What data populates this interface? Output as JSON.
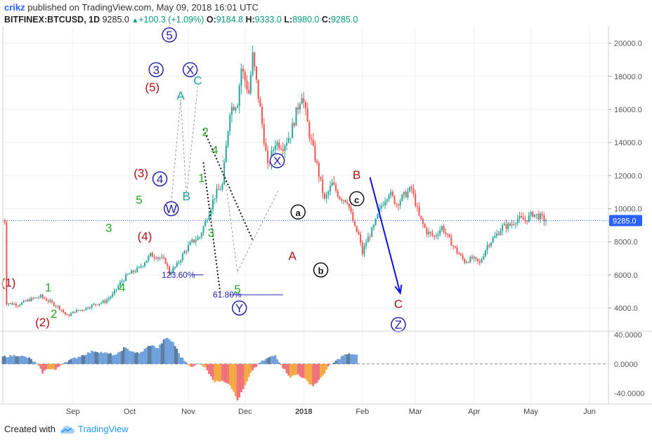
{
  "header": {
    "user": "crikz",
    "published": "published on TradingView.com, May 09, 2018 16:01 UTC",
    "symbol": "BITFINEX:BTCUSD, 1D",
    "price": "9285.0",
    "change": "+100.3 (+1.09%)",
    "o_label": "O:",
    "o": "9184.8",
    "h_label": "H:",
    "h": "9333.0",
    "l_label": "L:",
    "l": "8980.0",
    "c_label": "C:",
    "c": "9285.0"
  },
  "footer": {
    "created": "Created with",
    "brand": "TradingView"
  },
  "colors": {
    "up": "#26a69a",
    "down": "#ef5350",
    "blue": "#2222aa",
    "green": "#22aa22",
    "darkred": "#aa1111"
  },
  "chart_data": {
    "type": "candlestick",
    "symbol": "BITFINEX:BTCUSD",
    "timeframe": "1D",
    "last_price": 9285.0,
    "price_label": "9285.0",
    "ylim": [
      2600,
      21000
    ],
    "y_ticks": [
      4000,
      6000,
      8000,
      10000,
      12000,
      14000,
      16000,
      18000,
      20000
    ],
    "y_tick_labels": [
      "4000.0",
      "6000.0",
      "8000.0",
      "10000.0",
      "12000.0",
      "14000.0",
      "16000.0",
      "18000.0",
      "20000.0"
    ],
    "x_ticks": [
      {
        "d": 37,
        "label": "Sep"
      },
      {
        "d": 67,
        "label": "Oct"
      },
      {
        "d": 98,
        "label": "Nov"
      },
      {
        "d": 128,
        "label": "Dec"
      },
      {
        "d": 159,
        "label": "2018"
      },
      {
        "d": 190,
        "label": "Feb"
      },
      {
        "d": 218,
        "label": "Mar"
      },
      {
        "d": 249,
        "label": "Apr"
      },
      {
        "d": 279,
        "label": "May"
      },
      {
        "d": 310,
        "label": "Jun"
      }
    ],
    "price_path": [
      {
        "d": 2,
        "p": 4300
      },
      {
        "d": 8,
        "p": 4200
      },
      {
        "d": 14,
        "p": 4500
      },
      {
        "d": 20,
        "p": 4700
      },
      {
        "d": 26,
        "p": 4300
      },
      {
        "d": 30,
        "p": 4000
      },
      {
        "d": 34,
        "p": 3500
      },
      {
        "d": 38,
        "p": 3800
      },
      {
        "d": 42,
        "p": 3900
      },
      {
        "d": 48,
        "p": 4200
      },
      {
        "d": 54,
        "p": 4400
      },
      {
        "d": 58,
        "p": 4800
      },
      {
        "d": 62,
        "p": 5500
      },
      {
        "d": 66,
        "p": 6000
      },
      {
        "d": 72,
        "p": 6400
      },
      {
        "d": 78,
        "p": 7200
      },
      {
        "d": 82,
        "p": 7100
      },
      {
        "d": 86,
        "p": 6800
      },
      {
        "d": 88,
        "p": 6100
      },
      {
        "d": 92,
        "p": 6600
      },
      {
        "d": 96,
        "p": 7400
      },
      {
        "d": 100,
        "p": 8000
      },
      {
        "d": 104,
        "p": 8300
      },
      {
        "d": 108,
        "p": 9500
      },
      {
        "d": 112,
        "p": 10800
      },
      {
        "d": 116,
        "p": 11400
      },
      {
        "d": 120,
        "p": 16000
      },
      {
        "d": 124,
        "p": 16500
      },
      {
        "d": 126,
        "p": 18500
      },
      {
        "d": 130,
        "p": 17000
      },
      {
        "d": 132,
        "p": 19200
      },
      {
        "d": 136,
        "p": 16000
      },
      {
        "d": 140,
        "p": 12500
      },
      {
        "d": 144,
        "p": 14000
      },
      {
        "d": 148,
        "p": 13800
      },
      {
        "d": 152,
        "p": 14500
      },
      {
        "d": 156,
        "p": 16200
      },
      {
        "d": 158,
        "p": 17000
      },
      {
        "d": 162,
        "p": 14500
      },
      {
        "d": 166,
        "p": 12600
      },
      {
        "d": 170,
        "p": 10500
      },
      {
        "d": 174,
        "p": 11500
      },
      {
        "d": 178,
        "p": 10700
      },
      {
        "d": 182,
        "p": 10500
      },
      {
        "d": 186,
        "p": 8800
      },
      {
        "d": 188,
        "p": 8400
      },
      {
        "d": 190,
        "p": 7300
      },
      {
        "d": 192,
        "p": 8000
      },
      {
        "d": 196,
        "p": 8900
      },
      {
        "d": 200,
        "p": 10200
      },
      {
        "d": 204,
        "p": 11000
      },
      {
        "d": 208,
        "p": 10300
      },
      {
        "d": 212,
        "p": 10800
      },
      {
        "d": 216,
        "p": 11200
      },
      {
        "d": 220,
        "p": 9500
      },
      {
        "d": 224,
        "p": 8600
      },
      {
        "d": 228,
        "p": 8300
      },
      {
        "d": 232,
        "p": 8900
      },
      {
        "d": 236,
        "p": 8100
      },
      {
        "d": 240,
        "p": 7400
      },
      {
        "d": 244,
        "p": 6800
      },
      {
        "d": 248,
        "p": 7000
      },
      {
        "d": 252,
        "p": 6700
      },
      {
        "d": 256,
        "p": 7800
      },
      {
        "d": 260,
        "p": 8300
      },
      {
        "d": 264,
        "p": 8900
      },
      {
        "d": 268,
        "p": 9000
      },
      {
        "d": 272,
        "p": 9400
      },
      {
        "d": 276,
        "p": 9300
      },
      {
        "d": 280,
        "p": 9700
      },
      {
        "d": 284,
        "p": 9500
      },
      {
        "d": 287,
        "p": 9285
      }
    ],
    "wave_labels": [
      {
        "text": "(1)",
        "d": 3,
        "p": 5300,
        "color": "#aa1111"
      },
      {
        "text": "(2)",
        "d": 21,
        "p": 2900,
        "color": "#aa1111"
      },
      {
        "text": "1",
        "d": 24,
        "p": 5000,
        "color": "#22aa22"
      },
      {
        "text": "2",
        "d": 27,
        "p": 3400,
        "color": "#22aa22"
      },
      {
        "text": "3",
        "d": 56,
        "p": 8600,
        "color": "#22aa22"
      },
      {
        "text": "4",
        "d": 63,
        "p": 5000,
        "color": "#22aa22"
      },
      {
        "text": "5",
        "d": 72,
        "p": 10300,
        "color": "#22aa22"
      },
      {
        "text": "(3)",
        "d": 73,
        "p": 11900,
        "color": "#aa1111"
      },
      {
        "text": "(4)",
        "d": 75,
        "p": 8100,
        "color": "#aa1111"
      },
      {
        "text": "(5)",
        "d": 79,
        "p": 17100,
        "color": "#aa1111"
      },
      {
        "text": "A",
        "d": 94,
        "p": 16600,
        "color": "#1aa0a0"
      },
      {
        "text": "B",
        "d": 97,
        "p": 10500,
        "color": "#1aa0a0"
      },
      {
        "text": "C",
        "d": 103,
        "p": 17500,
        "color": "#1aa0a0"
      },
      {
        "text": "2",
        "d": 107,
        "p": 14400,
        "color": "#22aa22"
      },
      {
        "text": "4",
        "d": 112,
        "p": 13300,
        "color": "#22aa22"
      },
      {
        "text": "1",
        "d": 105,
        "p": 11600,
        "color": "#22aa22"
      },
      {
        "text": "3",
        "d": 110,
        "p": 8300,
        "color": "#22aa22"
      },
      {
        "text": "5",
        "d": 124,
        "p": 4900,
        "color": "#22aa22"
      },
      {
        "text": "A",
        "d": 153,
        "p": 6900,
        "color": "#aa1111"
      },
      {
        "text": "B",
        "d": 187,
        "p": 11800,
        "color": "#aa1111"
      },
      {
        "text": "C",
        "d": 209,
        "p": 4000,
        "color": "#aa1111"
      }
    ],
    "circled_labels": [
      {
        "text": "5",
        "d": 88,
        "p": 20500,
        "color": "#2222aa"
      },
      {
        "text": "3",
        "d": 81,
        "p": 18400,
        "color": "#2222aa"
      },
      {
        "text": "X",
        "d": 99,
        "p": 18400,
        "color": "#2222aa"
      },
      {
        "text": "4",
        "d": 83,
        "p": 11800,
        "color": "#2222aa"
      },
      {
        "text": "W",
        "d": 89,
        "p": 10000,
        "color": "#2222aa"
      },
      {
        "text": "X",
        "d": 145,
        "p": 12900,
        "color": "#2222aa"
      },
      {
        "text": "Y",
        "d": 125,
        "p": 4000,
        "color": "#2222aa"
      },
      {
        "text": "Z",
        "d": 209,
        "p": 3000,
        "color": "#2222aa"
      },
      {
        "text": "a",
        "d": 156,
        "p": 9800,
        "color": "#111111"
      },
      {
        "text": "b",
        "d": 168,
        "p": 6300,
        "color": "#111111"
      },
      {
        "text": "c",
        "d": 187,
        "p": 10600,
        "color": "#111111"
      }
    ],
    "fib_labels": [
      {
        "text": "123.60%",
        "p": 6000
      },
      {
        "text": "61.80%",
        "p": 4800
      }
    ],
    "projection": {
      "from": {
        "d": 194,
        "p": 11900
      },
      "to": {
        "d": 210,
        "p": 4900
      }
    },
    "oscillator": {
      "ylim": [
        -55,
        45
      ],
      "ticks": [
        40,
        0,
        -40
      ],
      "tick_labels": [
        "40.0000",
        "0.0000",
        "-40.0000"
      ],
      "values": [
        {
          "d": 0,
          "v": 10
        },
        {
          "d": 8,
          "v": 12
        },
        {
          "d": 14,
          "v": 8
        },
        {
          "d": 18,
          "v": 0
        },
        {
          "d": 21,
          "v": -12
        },
        {
          "d": 24,
          "v": -6
        },
        {
          "d": 28,
          "v": -8
        },
        {
          "d": 32,
          "v": 2
        },
        {
          "d": 40,
          "v": 10
        },
        {
          "d": 48,
          "v": 18
        },
        {
          "d": 56,
          "v": 14
        },
        {
          "d": 60,
          "v": 12
        },
        {
          "d": 64,
          "v": 22
        },
        {
          "d": 72,
          "v": 14
        },
        {
          "d": 78,
          "v": 26
        },
        {
          "d": 82,
          "v": 22
        },
        {
          "d": 86,
          "v": 36
        },
        {
          "d": 90,
          "v": 30
        },
        {
          "d": 94,
          "v": 10
        },
        {
          "d": 98,
          "v": 0
        },
        {
          "d": 100,
          "v": -5
        },
        {
          "d": 104,
          "v": 2
        },
        {
          "d": 108,
          "v": -8
        },
        {
          "d": 112,
          "v": -25
        },
        {
          "d": 116,
          "v": -22
        },
        {
          "d": 120,
          "v": -28
        },
        {
          "d": 124,
          "v": -50
        },
        {
          "d": 128,
          "v": -30
        },
        {
          "d": 132,
          "v": -8
        },
        {
          "d": 136,
          "v": 2
        },
        {
          "d": 140,
          "v": 8
        },
        {
          "d": 144,
          "v": 12
        },
        {
          "d": 148,
          "v": -5
        },
        {
          "d": 152,
          "v": -18
        },
        {
          "d": 156,
          "v": -14
        },
        {
          "d": 160,
          "v": -22
        },
        {
          "d": 164,
          "v": -30
        },
        {
          "d": 168,
          "v": -20
        },
        {
          "d": 172,
          "v": -4
        },
        {
          "d": 176,
          "v": 4
        },
        {
          "d": 180,
          "v": 12
        },
        {
          "d": 184,
          "v": 14
        },
        {
          "d": 187,
          "v": 12
        }
      ]
    }
  }
}
